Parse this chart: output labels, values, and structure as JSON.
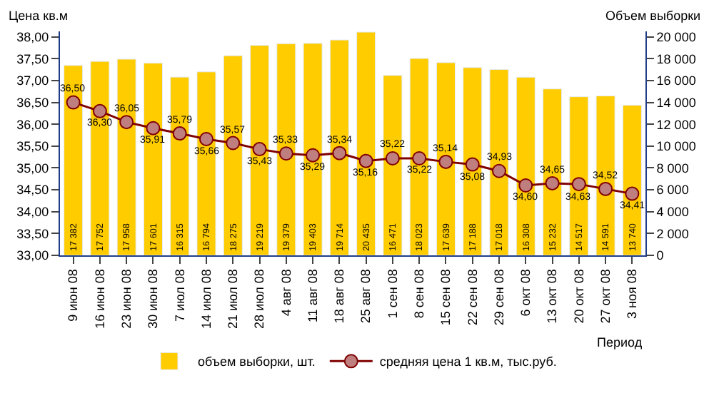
{
  "chart_data": {
    "type": "bar",
    "ylabel": "Цена кв.м",
    "y2label": "Объем выборки",
    "xlabel": "Период",
    "categories": [
      "9 июн 08",
      "16 июн 08",
      "23 июн 08",
      "30 июн 08",
      "7 июл 08",
      "14 июл 08",
      "21 июл 08",
      "28 июл 08",
      "4 авг 08",
      "11 авг 08",
      "18 авг 08",
      "25 авг 08",
      "1 сен 08",
      "8 сен 08",
      "15 сен 08",
      "22 сен 08",
      "29 сен 08",
      "6 окт 08",
      "13 окт 08",
      "20 окт 08",
      "27 окт 08",
      "3 ноя 08"
    ],
    "series": [
      {
        "name": "объем выборки, шт.",
        "axis": "y2",
        "color": "#ffcc00",
        "values": [
          17382,
          17752,
          17958,
          17601,
          16315,
          16794,
          18275,
          19219,
          19379,
          19403,
          19714,
          20435,
          16471,
          18023,
          17639,
          17188,
          17018,
          16308,
          15232,
          14517,
          14591,
          13740
        ],
        "value_labels": [
          "17 382",
          "17 752",
          "17 958",
          "17 601",
          "16 315",
          "16 794",
          "18 275",
          "19 219",
          "19 379",
          "19 403",
          "19 714",
          "20 435",
          "16 471",
          "18 023",
          "17 639",
          "17 188",
          "17 018",
          "16 308",
          "15 232",
          "14 517",
          "14 591",
          "13 740"
        ]
      },
      {
        "name": "средняя цена 1 кв.м, тыс.руб.",
        "type": "line",
        "axis": "y",
        "color": "#800000",
        "values": [
          36.5,
          36.3,
          36.05,
          35.91,
          35.79,
          35.66,
          35.57,
          35.43,
          35.33,
          35.29,
          35.34,
          35.16,
          35.22,
          35.22,
          35.14,
          35.08,
          34.93,
          34.6,
          34.65,
          34.63,
          34.52,
          34.41
        ],
        "value_labels": [
          "36,50",
          "36,30",
          "36,05",
          "35,91",
          "35,79",
          "35,66",
          "35,57",
          "35,43",
          "35,33",
          "35,29",
          "35,34",
          "35,16",
          "35,22",
          "35,22",
          "35,14",
          "35,08",
          "34,93",
          "34,60",
          "34,65",
          "34,63",
          "34,52",
          "34,41"
        ]
      }
    ],
    "ylim": [
      33,
      38.125
    ],
    "yticks": [
      {
        "value": 33,
        "label": "33,00"
      },
      {
        "value": 33.5,
        "label": "33,50"
      },
      {
        "value": 34,
        "label": "34,00"
      },
      {
        "value": 34.5,
        "label": "34,50"
      },
      {
        "value": 35,
        "label": "35,00"
      },
      {
        "value": 35.5,
        "label": "35,50"
      },
      {
        "value": 36,
        "label": "36,00"
      },
      {
        "value": 36.5,
        "label": "36,50"
      },
      {
        "value": 37,
        "label": "37,00"
      },
      {
        "value": 37.5,
        "label": "37,50"
      },
      {
        "value": 38,
        "label": "38,00"
      }
    ],
    "y2lim": [
      0,
      20500
    ],
    "y2ticks": [
      0,
      {
        "value": 2000,
        "label": "2 000"
      },
      {
        "value": 4000,
        "label": "4 000"
      },
      {
        "value": 6000,
        "label": "6 000"
      },
      {
        "value": 8000,
        "label": "8 000"
      },
      {
        "value": 10000,
        "label": "10 000"
      },
      {
        "value": 12000,
        "label": "12 000"
      },
      {
        "value": 14000,
        "label": "14 000"
      },
      {
        "value": 16000,
        "label": "16 000"
      },
      {
        "value": 18000,
        "label": "18 000"
      },
      {
        "value": 20000,
        "label": "20 000"
      }
    ],
    "legend": "bottom",
    "marker": "circle",
    "line_style": "solid"
  }
}
